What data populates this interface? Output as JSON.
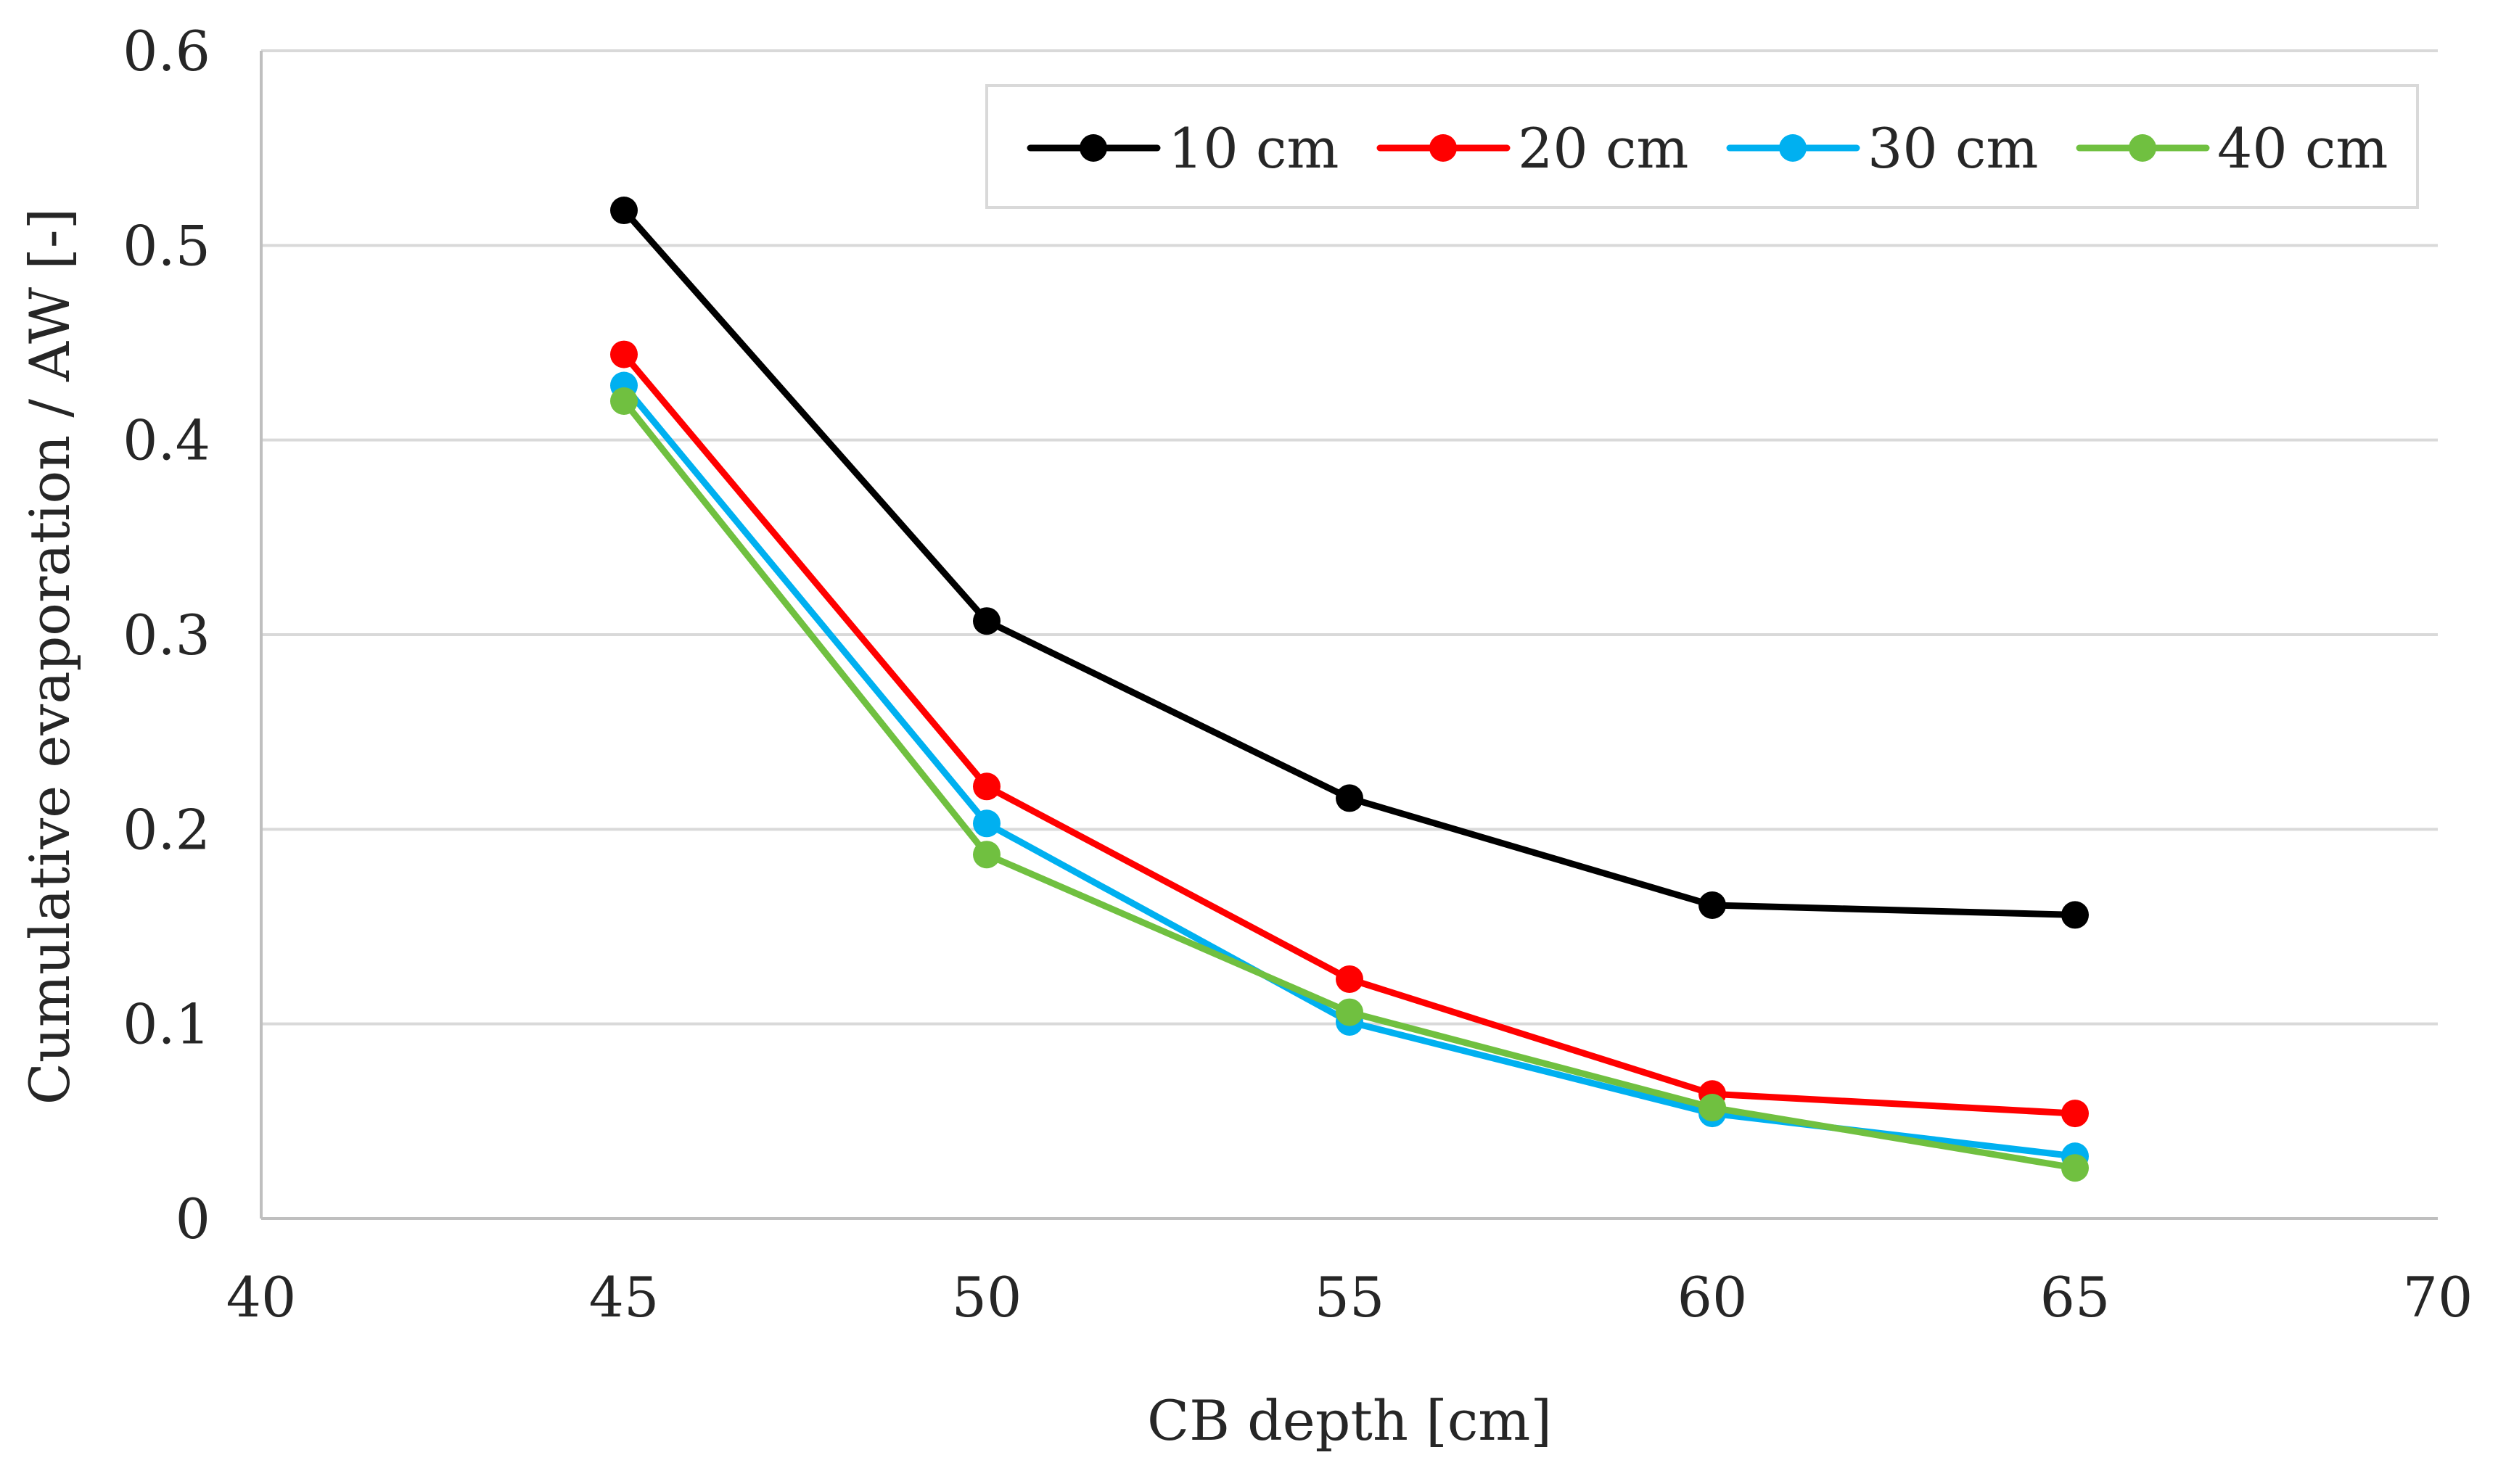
{
  "chart_data": {
    "type": "line",
    "title": "",
    "xlabel": "CB depth [cm]",
    "ylabel": "Cumulative evaporation / AW [-]",
    "xlim": [
      40,
      70
    ],
    "ylim": [
      0,
      0.6
    ],
    "x_ticks": [
      40,
      45,
      50,
      55,
      60,
      65,
      70
    ],
    "x_tick_labels": [
      "40",
      "45",
      "50",
      "55",
      "60",
      "65",
      "70"
    ],
    "y_ticks": [
      0,
      0.1,
      0.2,
      0.3,
      0.4,
      0.5,
      0.6
    ],
    "y_tick_labels": [
      "0",
      "0.1",
      "0.2",
      "0.3",
      "0.4",
      "0.5",
      "0.6"
    ],
    "grid": "horizontal",
    "legend_position": "top-right",
    "x": [
      45,
      50,
      55,
      60,
      65
    ],
    "series": [
      {
        "name": "10 cm",
        "color": "#000000",
        "values": [
          0.518,
          0.307,
          0.216,
          0.161,
          0.156
        ]
      },
      {
        "name": "20 cm",
        "color": "#ff0000",
        "values": [
          0.444,
          0.222,
          0.123,
          0.064,
          0.054
        ]
      },
      {
        "name": "30 cm",
        "color": "#00b0f0",
        "values": [
          0.428,
          0.203,
          0.101,
          0.054,
          0.032
        ]
      },
      {
        "name": "40 cm",
        "color": "#70c040",
        "values": [
          0.42,
          0.187,
          0.106,
          0.057,
          0.026
        ]
      }
    ]
  }
}
